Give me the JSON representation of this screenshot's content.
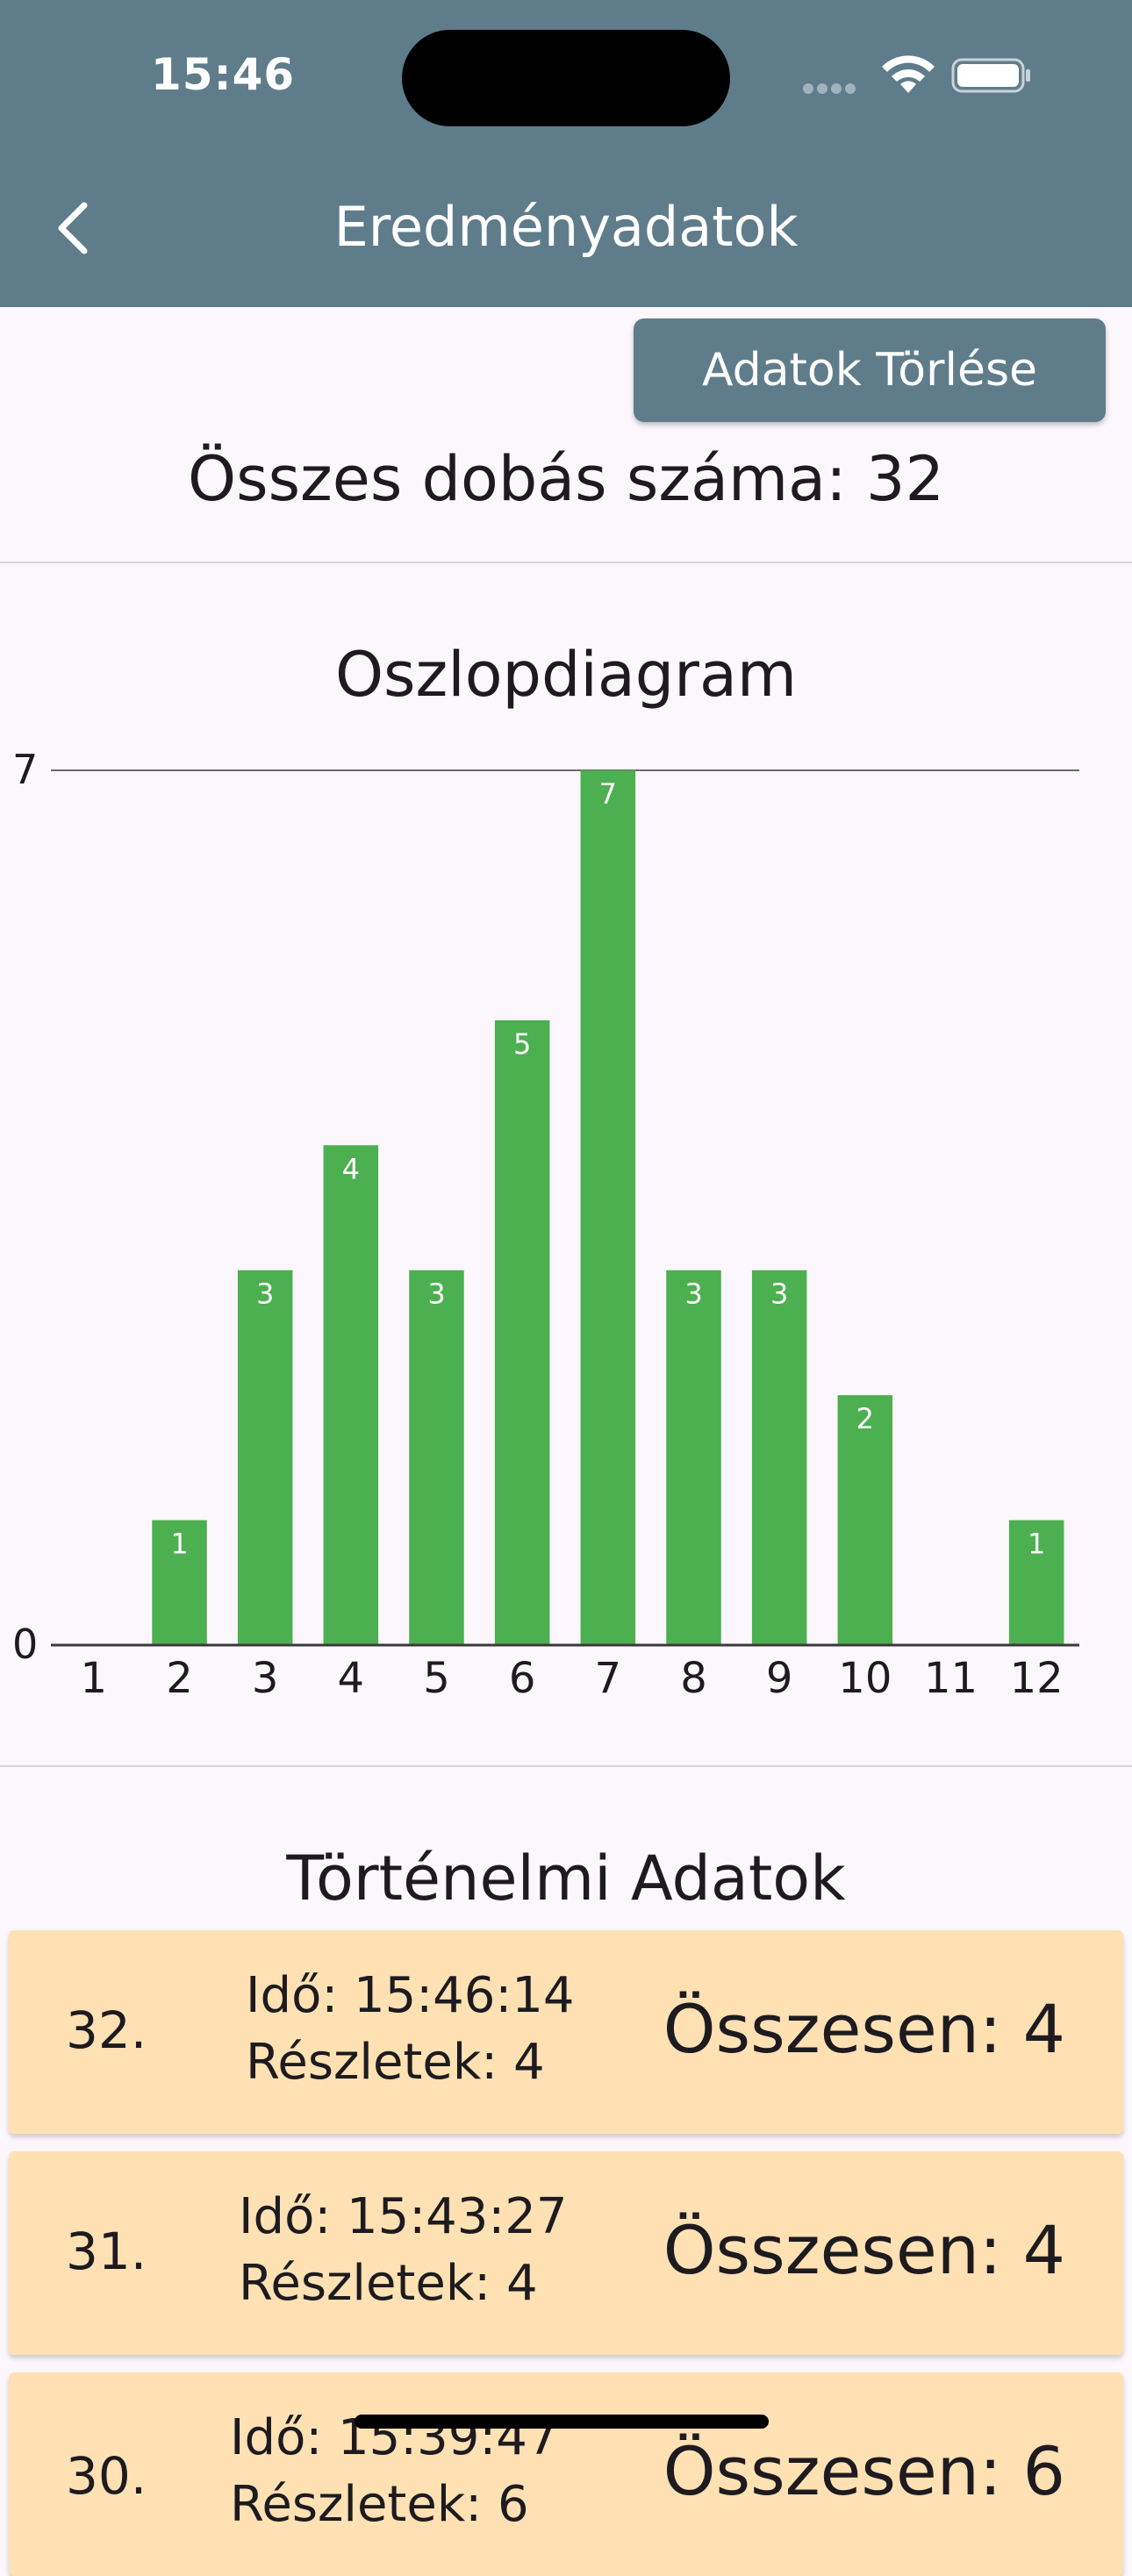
{
  "status_bar": {
    "time": "15:46"
  },
  "app_bar": {
    "title": "Eredményadatok",
    "back_icon": "chevron-left-icon"
  },
  "actions": {
    "delete_label": "Adatok Törlése"
  },
  "summary": {
    "total_text": "Összes dobás száma: 32"
  },
  "chart_section": {
    "title": "Oszlopdiagram"
  },
  "chart_data": {
    "type": "bar",
    "title": "Oszlopdiagram",
    "categories": [
      "1",
      "2",
      "3",
      "4",
      "5",
      "6",
      "7",
      "8",
      "9",
      "10",
      "11",
      "12"
    ],
    "values": [
      0,
      1,
      3,
      4,
      3,
      5,
      7,
      3,
      3,
      2,
      0,
      1
    ],
    "ylim": [
      0,
      7
    ],
    "y_ticks": [
      "0",
      "7"
    ],
    "bar_color": "#4caf50",
    "data_labels": true
  },
  "history": {
    "title": "Történelmi Adatok",
    "items": [
      {
        "index": "32.",
        "time": "Idő: 15:46:14",
        "details": "Részletek: 4",
        "sum": "Összesen: 4"
      },
      {
        "index": "31.",
        "time": "Idő: 15:43:27",
        "details": "Részletek: 4",
        "sum": "Összesen: 4"
      },
      {
        "index": "30.",
        "time": "Idő: 15:39:47",
        "details": "Részletek: 6",
        "sum": "Összesen: 6"
      }
    ]
  },
  "colors": {
    "app_bar": "#5f7c8b",
    "card": "#ffe1b3",
    "bar": "#4caf50",
    "background": "#fcf7fc"
  }
}
